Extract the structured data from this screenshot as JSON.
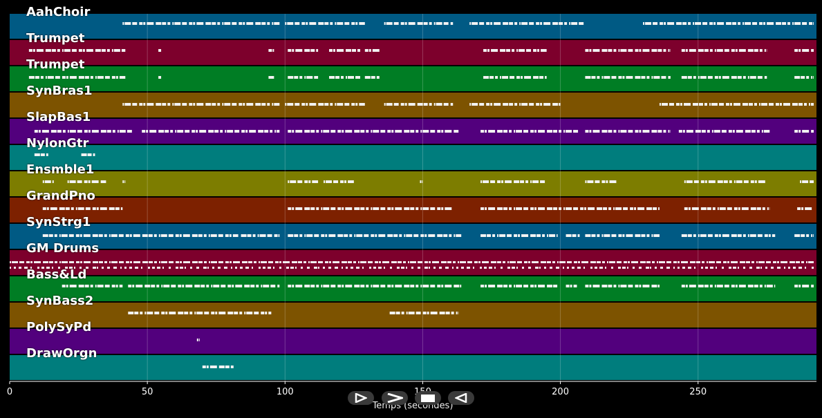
{
  "tracks": [
    {
      "name": "AahChoir",
      "color": "#005a84"
    },
    {
      "name": "Trumpet",
      "color": "#7d002c"
    },
    {
      "name": "Trumpet",
      "color": "#007d24"
    },
    {
      "name": "SynBras1",
      "color": "#7d5300"
    },
    {
      "name": "SlapBas1",
      "color": "#52007d"
    },
    {
      "name": "NylonGtr",
      "color": "#007d7d"
    },
    {
      "name": "Ensmble1",
      "color": "#7d7d00"
    },
    {
      "name": "GrandPno",
      "color": "#7d2100"
    },
    {
      "name": "SynStrg1",
      "color": "#005a84"
    },
    {
      "name": "GM Drums",
      "color": "#7d002c"
    },
    {
      "name": "Bass&Ld",
      "color": "#007d24"
    },
    {
      "name": "SynBass2",
      "color": "#7d5300"
    },
    {
      "name": "PolySyPd",
      "color": "#52007d"
    },
    {
      "name": "DrawOrgn",
      "color": "#007d7d"
    }
  ],
  "xaxis": {
    "label": "Temps (secondes)",
    "ticks": [
      "0",
      "50",
      "100",
      "150",
      "200",
      "250"
    ],
    "min": 0,
    "max": 293
  },
  "controls": {
    "play": "play-icon",
    "fast_forward": "fast-forward-icon",
    "stop": "stop-icon",
    "rewind": "rewind-icon"
  },
  "note_segments": [
    [
      [
        41,
        98
      ],
      [
        100,
        129
      ],
      [
        136,
        161
      ],
      [
        167,
        209
      ],
      [
        230,
        292
      ]
    ],
    [
      [
        7,
        42
      ],
      [
        54,
        55
      ],
      [
        94,
        96
      ],
      [
        101,
        112
      ],
      [
        116,
        128
      ],
      [
        129,
        135
      ],
      [
        172,
        195
      ],
      [
        209,
        240
      ],
      [
        244,
        275
      ],
      [
        285,
        292
      ]
    ],
    [
      [
        7,
        42
      ],
      [
        54,
        55
      ],
      [
        94,
        96
      ],
      [
        101,
        112
      ],
      [
        116,
        128
      ],
      [
        129,
        135
      ],
      [
        172,
        195
      ],
      [
        209,
        240
      ],
      [
        244,
        275
      ],
      [
        285,
        292
      ]
    ],
    [
      [
        41,
        98
      ],
      [
        100,
        129
      ],
      [
        136,
        161
      ],
      [
        167,
        200
      ],
      [
        236,
        292
      ]
    ],
    [
      [
        9,
        45
      ],
      [
        48,
        98
      ],
      [
        101,
        163
      ],
      [
        171,
        207
      ],
      [
        209,
        240
      ],
      [
        243,
        276
      ],
      [
        285,
        292
      ]
    ],
    [
      [
        9,
        14
      ],
      [
        26,
        31
      ]
    ],
    [
      [
        12,
        16
      ],
      [
        21,
        35
      ],
      [
        41,
        42
      ],
      [
        101,
        112
      ],
      [
        114,
        125
      ],
      [
        149,
        150
      ],
      [
        171,
        195
      ],
      [
        209,
        221
      ],
      [
        245,
        275
      ],
      [
        287,
        292
      ]
    ],
    [
      [
        12,
        41
      ],
      [
        101,
        161
      ],
      [
        171,
        236
      ],
      [
        245,
        276
      ],
      [
        286,
        292
      ]
    ],
    [
      [
        12,
        83
      ],
      [
        84,
        98
      ],
      [
        101,
        164
      ],
      [
        171,
        199
      ],
      [
        202,
        207
      ],
      [
        209,
        236
      ],
      [
        244,
        278
      ],
      [
        285,
        292
      ]
    ],
    [
      [
        0,
        292
      ]
    ],
    [
      [
        19,
        41
      ],
      [
        43,
        98
      ],
      [
        101,
        164
      ],
      [
        171,
        199
      ],
      [
        202,
        206
      ],
      [
        209,
        236
      ],
      [
        244,
        278
      ],
      [
        285,
        292
      ]
    ],
    [
      [
        43,
        95
      ],
      [
        138,
        163
      ]
    ],
    [
      [
        68,
        69
      ]
    ],
    [
      [
        70,
        82
      ]
    ]
  ]
}
